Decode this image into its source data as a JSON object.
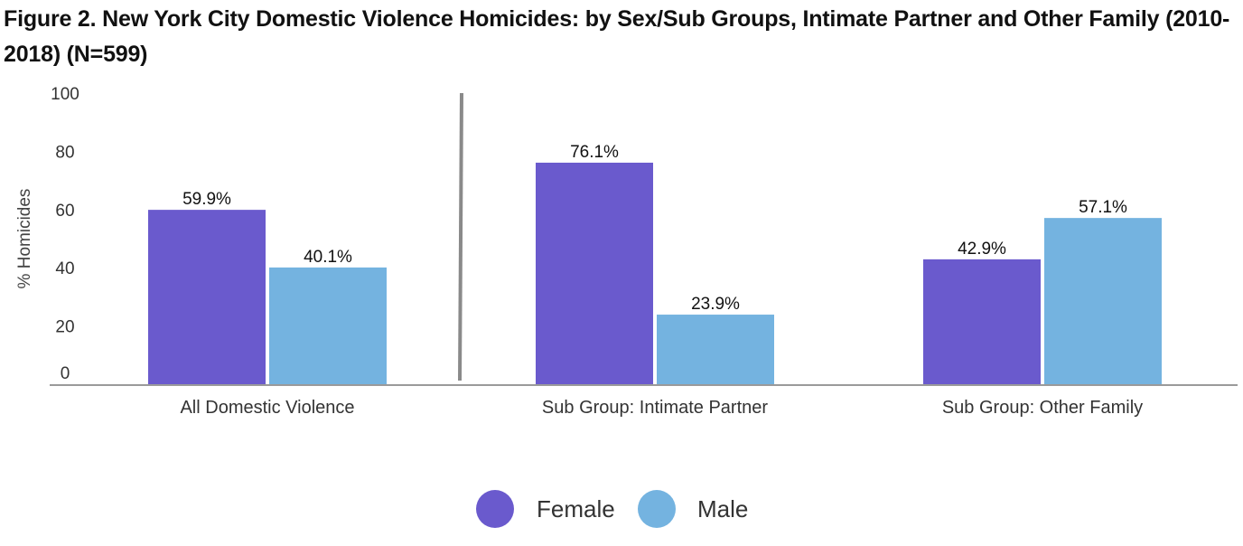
{
  "title": "Figure 2. New York City Domestic Violence Homicides: by Sex/Sub Groups, Intimate Partner and Other Family (2010-2018) (N=599)",
  "chart_data": {
    "type": "bar",
    "title": "Figure 2. New York City Domestic Violence Homicides: by Sex/Sub Groups, Intimate Partner and Other Family (2010-2018) (N=599)",
    "xlabel": "",
    "ylabel": "% Homicides",
    "ylim": [
      0,
      100
    ],
    "yticks": [
      0,
      20,
      40,
      60,
      80,
      100
    ],
    "categories": [
      "All Domestic Violence",
      "Sub Group: Intimate Partner",
      "Sub Group: Other Family"
    ],
    "series": [
      {
        "name": "Female",
        "color": "#6a5acd",
        "values": [
          59.9,
          76.1,
          42.9
        ],
        "labels": [
          "59.9%",
          "76.1%",
          "42.9%"
        ]
      },
      {
        "name": "Male",
        "color": "#74b3e0",
        "values": [
          40.1,
          23.9,
          57.1
        ],
        "labels": [
          "40.1%",
          "23.9%",
          "57.1%"
        ]
      }
    ],
    "grid": false,
    "legend": "bottom-center",
    "separator_after_category": 0
  }
}
